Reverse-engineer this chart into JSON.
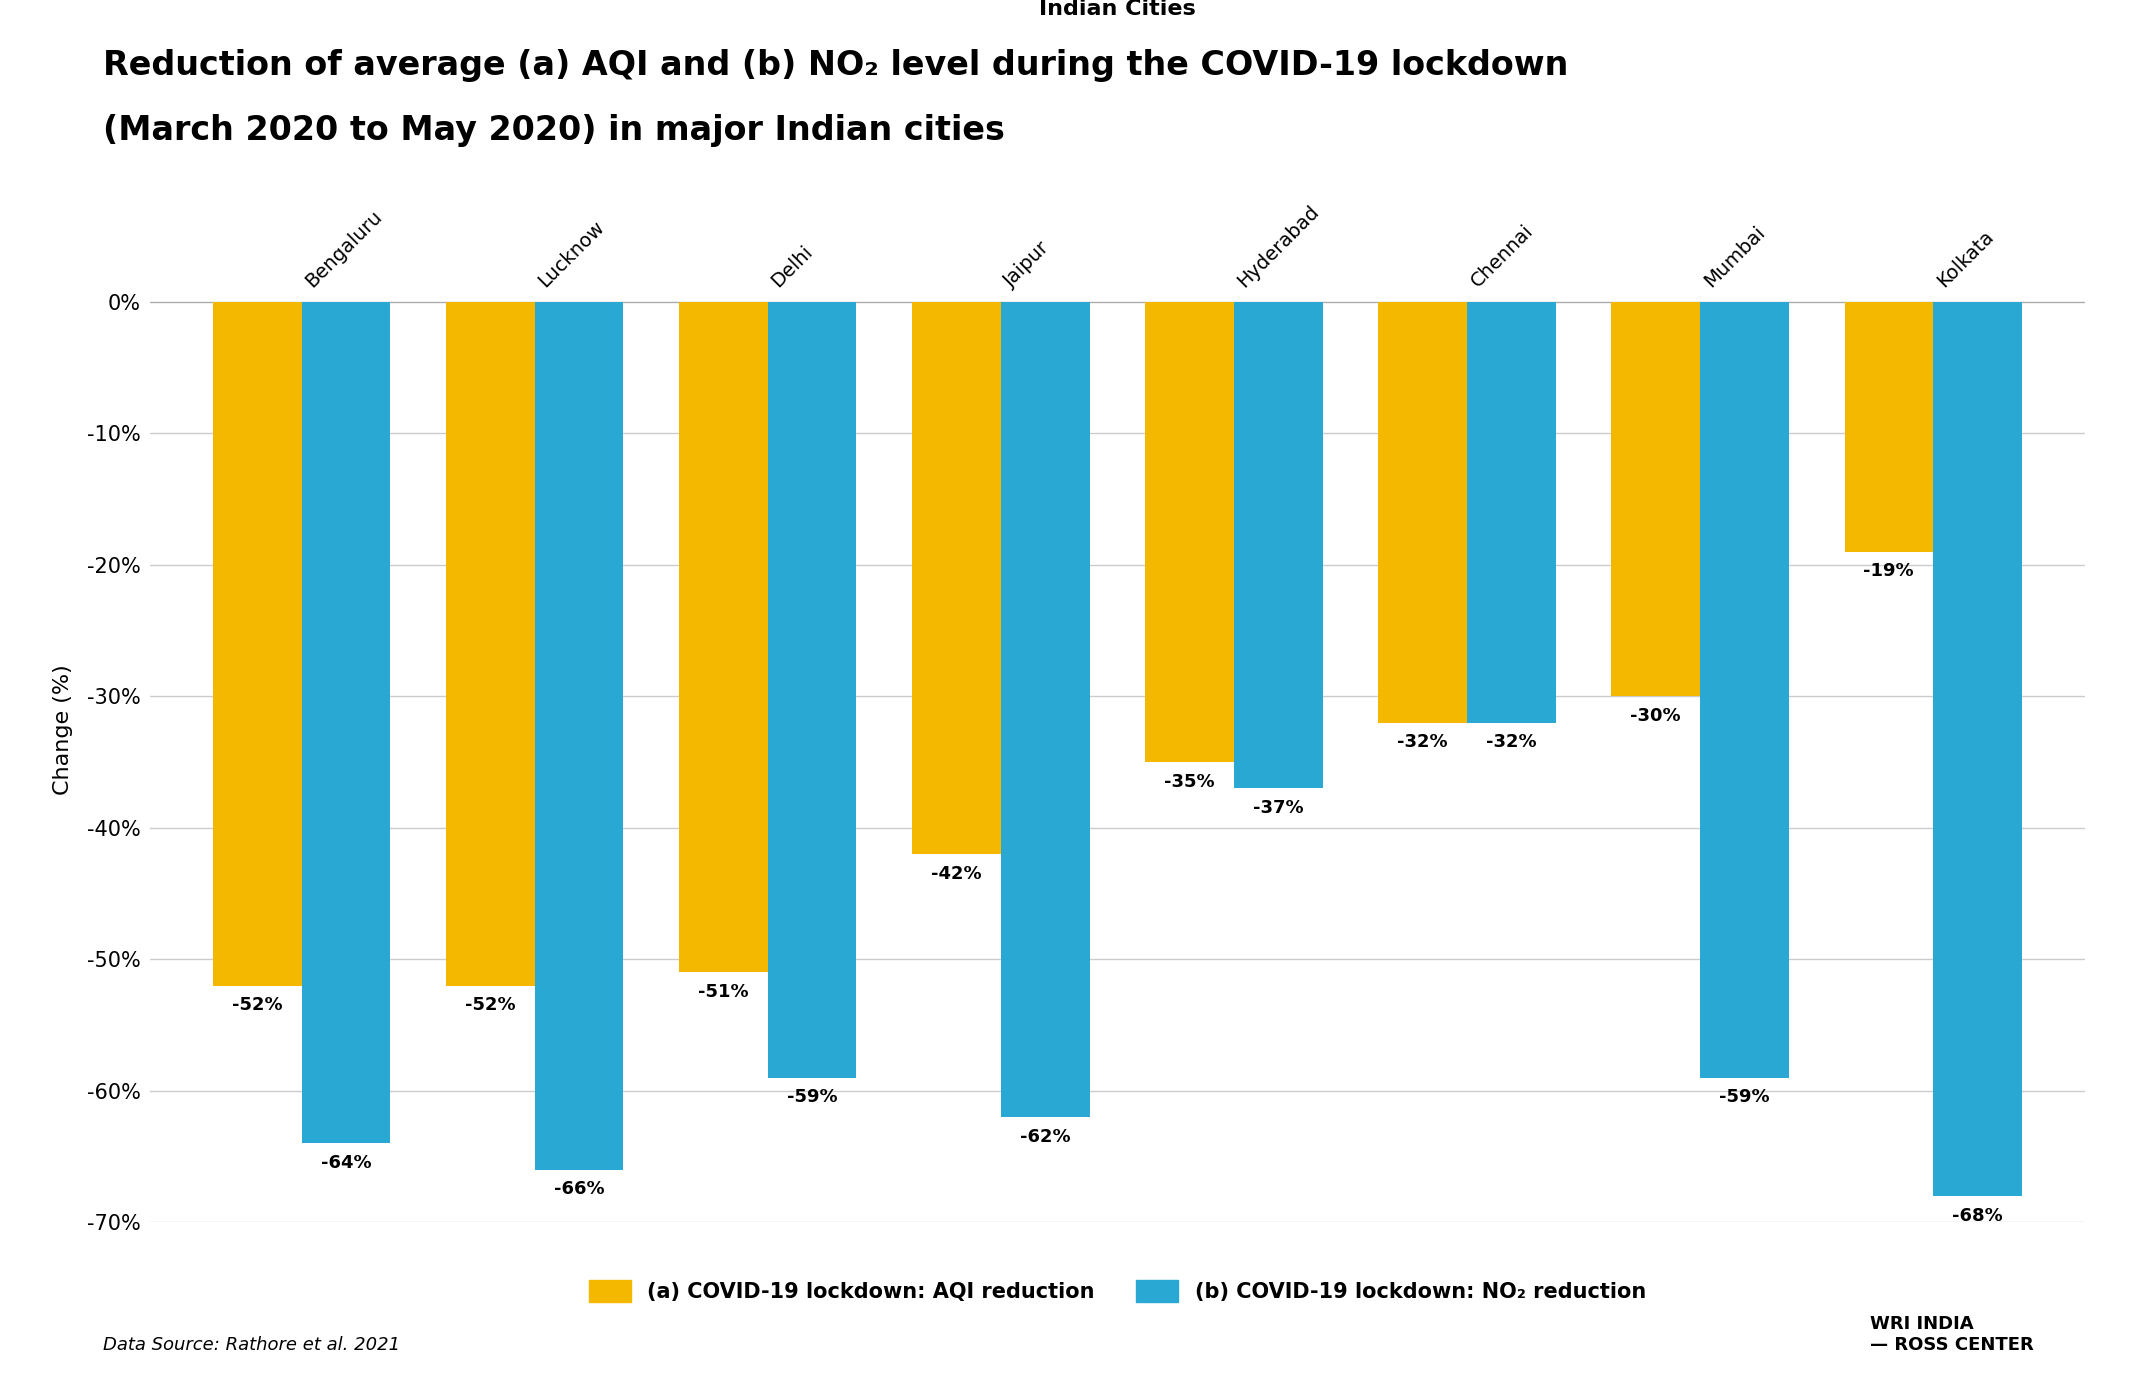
{
  "title_line1": "Reduction of average (a) AQI and (b) NO₂ level during the COVID-19 lockdown",
  "title_line2": "(March 2020 to May 2020) in major Indian cities",
  "xlabel": "Indian Cities",
  "ylabel": "Change (%)",
  "cities": [
    "Bengaluru",
    "Lucknow",
    "Delhi",
    "Jaipur",
    "Hyderabad",
    "Chennai",
    "Mumbai",
    "Kolkata"
  ],
  "aqi_values": [
    -52,
    -52,
    -51,
    -42,
    -35,
    -32,
    -30,
    -19
  ],
  "no2_values": [
    -64,
    -66,
    -59,
    -62,
    -37,
    -32,
    -59,
    -68
  ],
  "aqi_color": "#F5B800",
  "no2_color": "#29A8D4",
  "ylim": [
    -70,
    5
  ],
  "yticks": [
    0,
    -10,
    -20,
    -30,
    -40,
    -50,
    -60,
    -70
  ],
  "ytick_labels": [
    "0%",
    "-10%",
    "-20%",
    "-30%",
    "-40%",
    "-50%",
    "-60%",
    "-70%"
  ],
  "legend_aqi": "(a) COVID-19 lockdown: AQI reduction",
  "legend_no2": "(b) COVID-19 lockdown: NO₂ reduction",
  "datasource": "Data Source: Rathore et al. 2021",
  "bar_width": 0.38,
  "background_color": "#ffffff",
  "grid_color": "#cccccc",
  "title_fontsize": 24,
  "axis_label_fontsize": 16,
  "tick_fontsize": 15,
  "legend_fontsize": 15,
  "bar_label_fontsize": 13,
  "city_label_fontsize": 14
}
